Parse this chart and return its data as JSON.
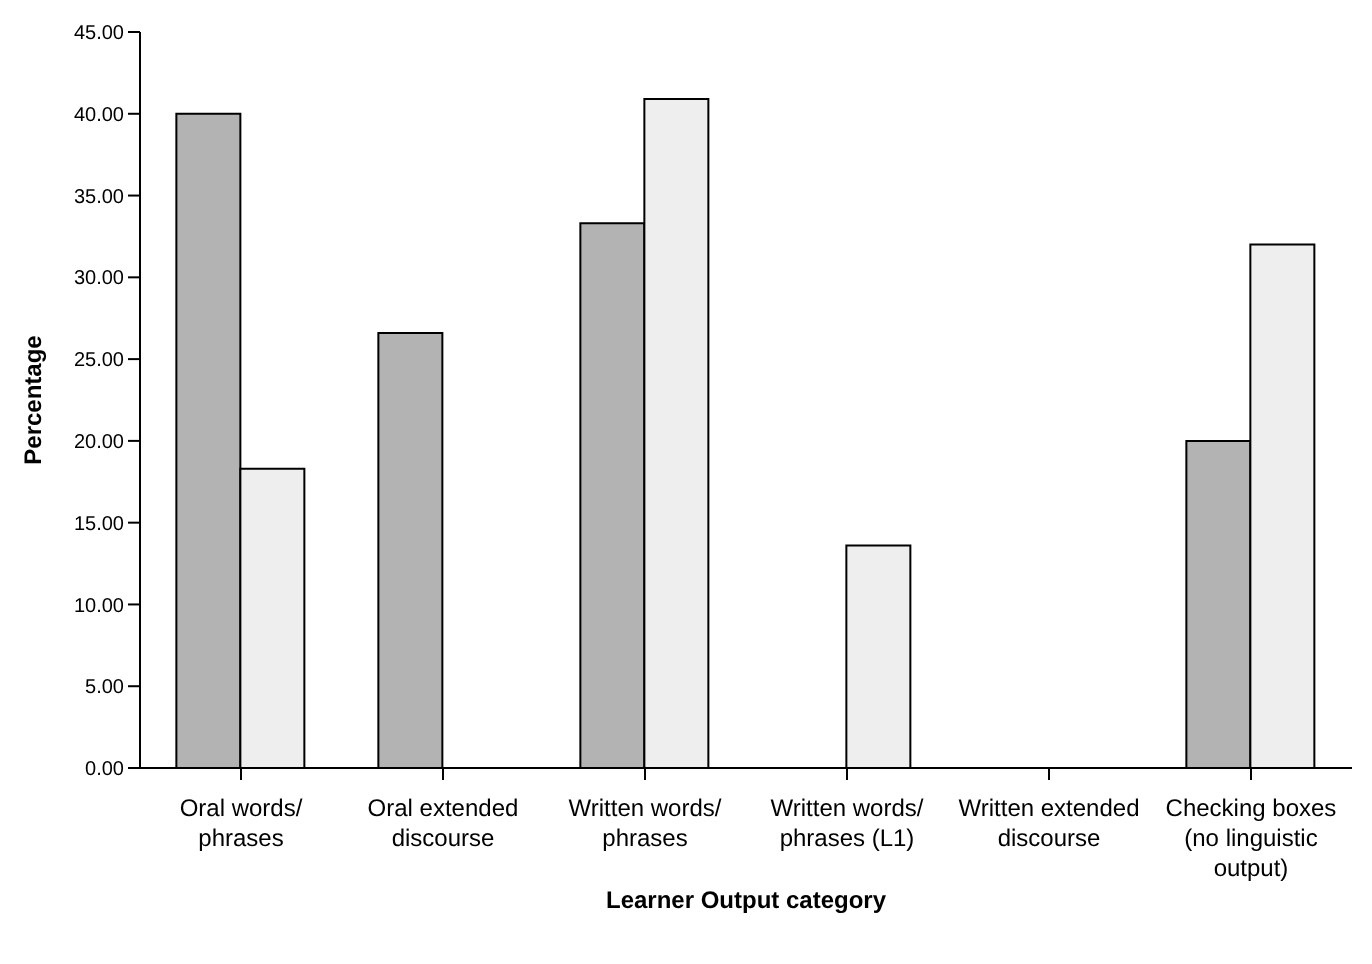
{
  "chart_data": {
    "type": "bar",
    "xlabel": "Learner Output category",
    "ylabel": "Percentage",
    "categories": [
      "Oral words/ phrases",
      "Oral extended discourse",
      "Written words/ phrases",
      "Written words/ phrases (L1)",
      "Written extended discourse",
      "Checking boxes (no linguistic output)"
    ],
    "series": [
      {
        "color": "#b3b3b3",
        "values": [
          40.0,
          26.6,
          33.3,
          0,
          0,
          20.0
        ]
      },
      {
        "color": "#eeeeee",
        "values": [
          18.3,
          0,
          40.9,
          13.6,
          0,
          32.0
        ]
      }
    ],
    "ylim": [
      0,
      45
    ],
    "yticks": [
      {
        "value": 0,
        "label": "0.00"
      },
      {
        "value": 5,
        "label": "5.00"
      },
      {
        "value": 10,
        "label": "10.00"
      },
      {
        "value": 15,
        "label": "15.00"
      },
      {
        "value": 20,
        "label": "20.00"
      },
      {
        "value": 25,
        "label": "25.00"
      },
      {
        "value": 30,
        "label": "30.00"
      },
      {
        "value": 35,
        "label": "35.00"
      },
      {
        "value": 40,
        "label": "40.00"
      },
      {
        "value": 45,
        "label": "45.00"
      }
    ],
    "grid": false,
    "legend": false
  }
}
